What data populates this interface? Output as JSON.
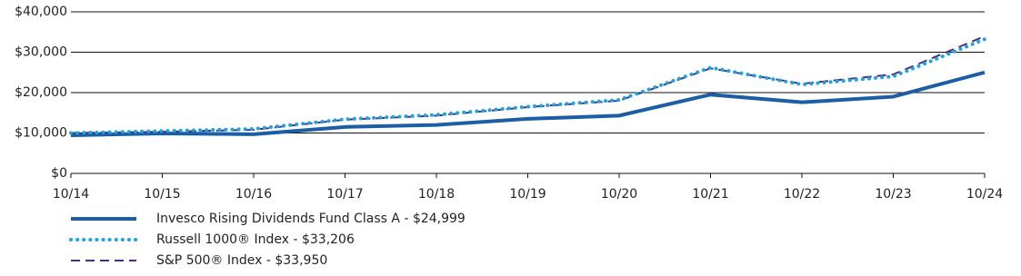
{
  "chart_data": {
    "type": "line",
    "categories": [
      "10/14",
      "10/15",
      "10/16",
      "10/17",
      "10/18",
      "10/19",
      "10/20",
      "10/21",
      "10/22",
      "10/23",
      "10/24"
    ],
    "series": [
      {
        "name": "Invesco Rising Dividends Fund Class A - $24,999",
        "color": "#1b5ea6",
        "style": "solid",
        "values": [
          9425,
          9900,
          9700,
          11500,
          12000,
          13500,
          14300,
          19500,
          17600,
          19000,
          24999
        ]
      },
      {
        "name": "Russell 1000® Index - $33,206",
        "color": "#1ea3dc",
        "style": "dotted",
        "values": [
          10000,
          10500,
          11000,
          13400,
          14500,
          16500,
          18200,
          26200,
          22000,
          24000,
          33206
        ]
      },
      {
        "name": "S&P 500® Index - $33,950",
        "color": "#4b2e83",
        "style": "dashed",
        "values": [
          10000,
          10300,
          10800,
          13300,
          14300,
          16400,
          18000,
          26000,
          22200,
          24500,
          33950
        ]
      }
    ],
    "ylim": [
      0,
      40000
    ],
    "yticks": [
      {
        "value": 0,
        "label": "$0"
      },
      {
        "value": 10000,
        "label": "$10,000"
      },
      {
        "value": 20000,
        "label": "$20,000"
      },
      {
        "value": 30000,
        "label": "$30,000"
      },
      {
        "value": 40000,
        "label": "$40,000"
      }
    ],
    "grid": true
  }
}
